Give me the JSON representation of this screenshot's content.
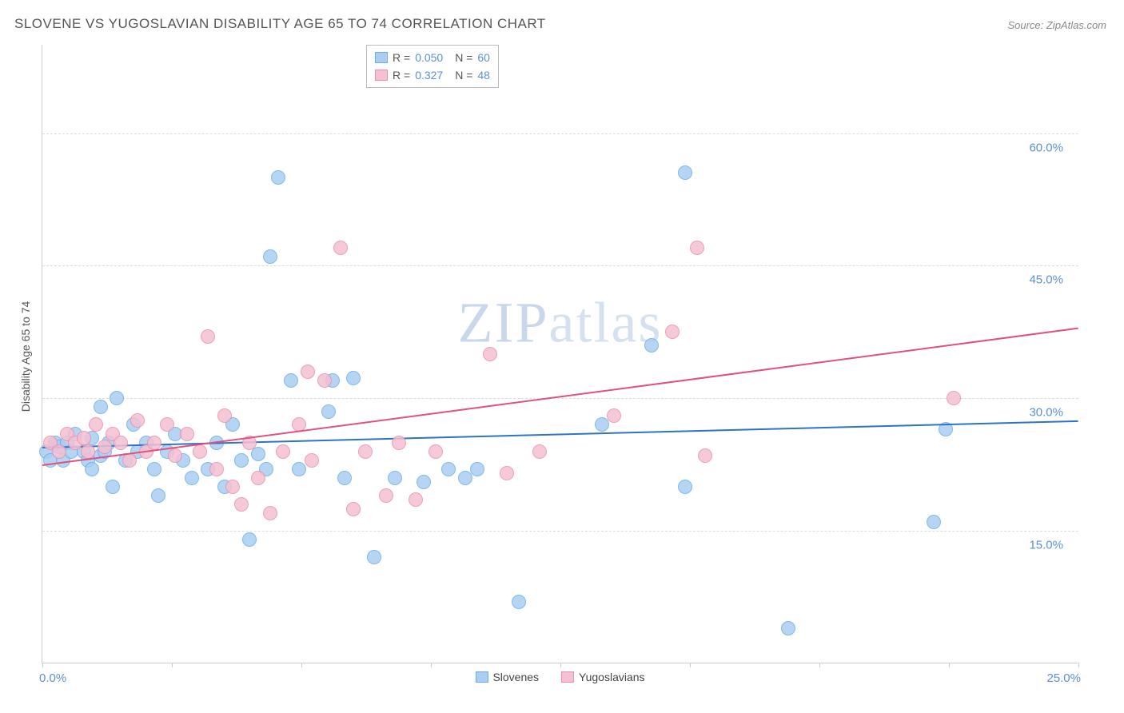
{
  "title": "SLOVENE VS YUGOSLAVIAN DISABILITY AGE 65 TO 74 CORRELATION CHART",
  "source": "Source: ZipAtlas.com",
  "ylabel": "Disability Age 65 to 74",
  "watermark_a": "ZIP",
  "watermark_b": "atlas",
  "chart": {
    "type": "scatter",
    "background_color": "#ffffff",
    "grid_color": "#dddddd",
    "axis_color": "#cccccc",
    "tick_label_color": "#5b8fd6",
    "axis_label_color": "#555555",
    "xlim": [
      0,
      25
    ],
    "ylim": [
      0,
      70
    ],
    "x_ticks": [
      0,
      3.125,
      6.25,
      9.375,
      12.5,
      15.625,
      18.75,
      21.875,
      25
    ],
    "x_tick_labels": {
      "0": "0.0%",
      "25": "25.0%"
    },
    "y_gridlines": [
      15,
      30,
      45,
      60
    ],
    "y_tick_labels": {
      "15": "15.0%",
      "30": "30.0%",
      "45": "45.0%",
      "60": "60.0%"
    },
    "marker_radius": 9,
    "marker_border_width": 1.2,
    "marker_fill_opacity": 0.28,
    "trendline_width": 2,
    "series": [
      {
        "name": "Slovenes",
        "color_border": "#6badee",
        "color_fill": "#a9cef2",
        "trend_color": "#2f74c4",
        "R": "0.050",
        "N": "60",
        "trend": {
          "x0": 0,
          "y0": 24.5,
          "x1": 25,
          "y1": 27.5
        },
        "points": [
          [
            0.1,
            24
          ],
          [
            0.2,
            23
          ],
          [
            0.3,
            25
          ],
          [
            0.4,
            24.5
          ],
          [
            0.5,
            23
          ],
          [
            0.6,
            25
          ],
          [
            0.7,
            24
          ],
          [
            0.8,
            26
          ],
          [
            1.0,
            24
          ],
          [
            1.1,
            23
          ],
          [
            1.2,
            25.5
          ],
          [
            1.2,
            22
          ],
          [
            1.4,
            29
          ],
          [
            1.4,
            23.5
          ],
          [
            1.5,
            24
          ],
          [
            1.6,
            25
          ],
          [
            1.7,
            20
          ],
          [
            1.8,
            30
          ],
          [
            2.0,
            23
          ],
          [
            2.2,
            27
          ],
          [
            2.3,
            24
          ],
          [
            2.5,
            25
          ],
          [
            2.7,
            22
          ],
          [
            2.8,
            19
          ],
          [
            3.0,
            24
          ],
          [
            3.2,
            26
          ],
          [
            3.4,
            23
          ],
          [
            3.6,
            21
          ],
          [
            4.0,
            22
          ],
          [
            4.2,
            25
          ],
          [
            4.4,
            20
          ],
          [
            4.6,
            27
          ],
          [
            4.8,
            23
          ],
          [
            5.0,
            14
          ],
          [
            5.2,
            23.7
          ],
          [
            5.4,
            22
          ],
          [
            5.5,
            46
          ],
          [
            5.7,
            55
          ],
          [
            6.0,
            32
          ],
          [
            6.2,
            22
          ],
          [
            6.9,
            28.5
          ],
          [
            7.0,
            32
          ],
          [
            7.3,
            21
          ],
          [
            7.5,
            32.3
          ],
          [
            8.0,
            12
          ],
          [
            8.5,
            21
          ],
          [
            9.2,
            20.5
          ],
          [
            9.8,
            22
          ],
          [
            10.2,
            21
          ],
          [
            10.5,
            22
          ],
          [
            11.5,
            7
          ],
          [
            13.5,
            27
          ],
          [
            14.7,
            36
          ],
          [
            15.5,
            55.5
          ],
          [
            15.5,
            20
          ],
          [
            18.0,
            4
          ],
          [
            21.5,
            16
          ],
          [
            21.8,
            26.5
          ]
        ]
      },
      {
        "name": "Yugoslavians",
        "color_border": "#ea8fae",
        "color_fill": "#f4c0d2",
        "trend_color": "#e0527e",
        "R": "0.327",
        "N": "48",
        "trend": {
          "x0": 0,
          "y0": 22.5,
          "x1": 25,
          "y1": 38
        },
        "points": [
          [
            0.2,
            25
          ],
          [
            0.4,
            24
          ],
          [
            0.6,
            26
          ],
          [
            0.8,
            25
          ],
          [
            1.0,
            25.5
          ],
          [
            1.1,
            24
          ],
          [
            1.3,
            27
          ],
          [
            1.5,
            24.5
          ],
          [
            1.7,
            26
          ],
          [
            1.9,
            25
          ],
          [
            2.1,
            23
          ],
          [
            2.3,
            27.5
          ],
          [
            2.5,
            24
          ],
          [
            2.7,
            25
          ],
          [
            3.0,
            27
          ],
          [
            3.2,
            23.5
          ],
          [
            3.5,
            26
          ],
          [
            3.8,
            24
          ],
          [
            4.0,
            37
          ],
          [
            4.2,
            22
          ],
          [
            4.4,
            28
          ],
          [
            4.6,
            20
          ],
          [
            4.8,
            18
          ],
          [
            5.0,
            25
          ],
          [
            5.2,
            21
          ],
          [
            5.5,
            17
          ],
          [
            5.8,
            24
          ],
          [
            6.2,
            27
          ],
          [
            6.4,
            33
          ],
          [
            6.5,
            23
          ],
          [
            6.8,
            32
          ],
          [
            7.2,
            47
          ],
          [
            7.5,
            17.5
          ],
          [
            7.8,
            24
          ],
          [
            8.3,
            19
          ],
          [
            8.6,
            25
          ],
          [
            9.0,
            18.5
          ],
          [
            9.5,
            24
          ],
          [
            10.8,
            35
          ],
          [
            11.2,
            21.5
          ],
          [
            12.0,
            24
          ],
          [
            13.8,
            28
          ],
          [
            15.2,
            37.5
          ],
          [
            15.8,
            47
          ],
          [
            16.0,
            23.5
          ],
          [
            22.0,
            30
          ]
        ]
      }
    ]
  },
  "legend_stats": {
    "label_R": "R =",
    "label_N": "N ="
  },
  "bottom_legend": [
    {
      "label": "Slovenes",
      "border": "#6badee",
      "fill": "#a9cef2"
    },
    {
      "label": "Yugoslavians",
      "border": "#ea8fae",
      "fill": "#f4c0d2"
    }
  ]
}
